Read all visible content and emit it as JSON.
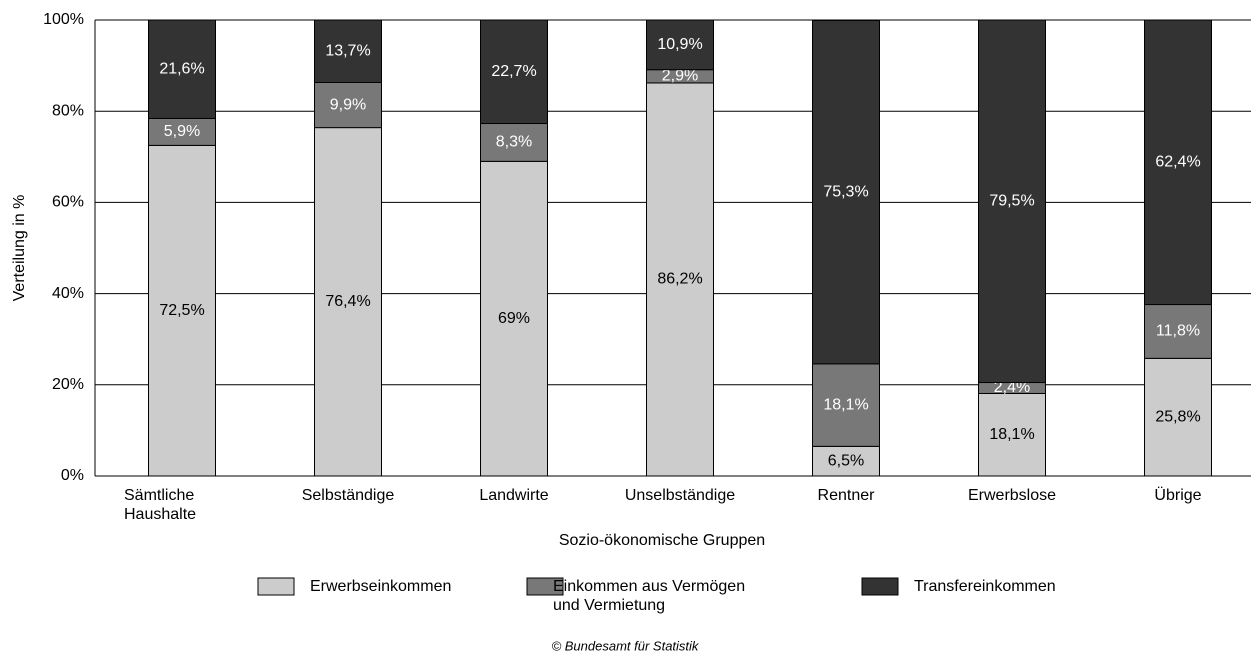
{
  "chart_data": {
    "type": "stacked_bar",
    "categories": [
      "Sämtliche Haushalte",
      "Selbständige",
      "Landwirte",
      "Unselbständige",
      "Rentner",
      "Erwerbslose",
      "Übrige"
    ],
    "series": [
      {
        "name": "Erwerbseinkommen",
        "color": "#cccccc",
        "label_color": "#000000",
        "values": [
          72.5,
          76.4,
          69,
          86.2,
          6.5,
          18.1,
          25.8
        ],
        "value_labels": [
          "72,5%",
          "76,4%",
          "69%",
          "86,2%",
          "6,5%",
          "18,1%",
          "25,8%"
        ]
      },
      {
        "name": "Einkommen aus Vermögen und Vermietung",
        "color": "#787878",
        "label_color": "#ffffff",
        "values": [
          5.9,
          9.9,
          8.3,
          2.9,
          18.1,
          2.4,
          11.8
        ],
        "value_labels": [
          "5,9%",
          "9,9%",
          "8,3%",
          "2,9%",
          "18,1%",
          "2,4%",
          "11,8%"
        ]
      },
      {
        "name": "Transfereinkommen",
        "color": "#333333",
        "label_color": "#ffffff",
        "values": [
          21.6,
          13.7,
          22.7,
          10.9,
          75.3,
          79.5,
          62.4
        ],
        "value_labels": [
          "21,6%",
          "13,7%",
          "22,7%",
          "10,9%",
          "75,3%",
          "79,5%",
          "62,4%"
        ]
      }
    ],
    "ylim": [
      0,
      100
    ],
    "yticks": [
      {
        "value": 0,
        "label": "0%"
      },
      {
        "value": 20,
        "label": "20%"
      },
      {
        "value": 40,
        "label": "40%"
      },
      {
        "value": 60,
        "label": "60%"
      },
      {
        "value": 80,
        "label": "80%"
      },
      {
        "value": 100,
        "label": "100%"
      }
    ],
    "y_label": "Verteilung in %",
    "x_label": "Sozio-ökonomische Gruppen",
    "grid": true,
    "source": "© Bundesamt für Statistik"
  }
}
